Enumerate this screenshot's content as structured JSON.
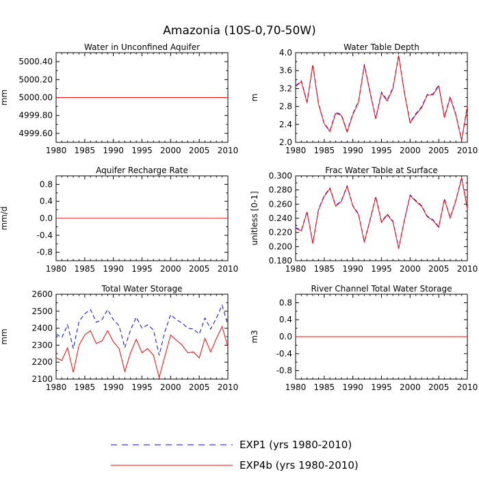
{
  "figure": {
    "title": "Amazonia (10S-0,70-50W)"
  },
  "legend": [
    {
      "label": "EXP1 (yrs 1980-2010)",
      "color": "#0000ff",
      "dash": true
    },
    {
      "label": "EXP4b (yrs 1980-2010)",
      "color": "#ff0000",
      "dash": false
    }
  ],
  "chart_data": [
    {
      "type": "line",
      "title": "Water in Unconfined Aquifer",
      "ylabel": "mm",
      "xlim": [
        1980,
        2010
      ],
      "ylim": [
        4999.5,
        5000.5
      ],
      "xticks": [
        1980,
        1985,
        1990,
        1995,
        2000,
        2005,
        2010
      ],
      "xtick_labels": [
        "1980",
        "1985",
        "1990",
        "1995",
        "2000",
        "2005",
        "2010"
      ],
      "yticks": [
        4999.6,
        4999.8,
        5000.0,
        5000.2,
        5000.4
      ],
      "ytick_labels": [
        "4999.60",
        "4999.80",
        "5000.00",
        "5000.20",
        "5000.40"
      ],
      "x": [
        1980,
        1981,
        1982,
        1983,
        1984,
        1985,
        1986,
        1987,
        1988,
        1989,
        1990,
        1991,
        1992,
        1993,
        1994,
        1995,
        1996,
        1997,
        1998,
        1999,
        2000,
        2001,
        2002,
        2003,
        2004,
        2005,
        2006,
        2007,
        2008,
        2009,
        2010
      ],
      "series": [
        {
          "name": "EXP1",
          "values": [
            5000,
            5000,
            5000,
            5000,
            5000,
            5000,
            5000,
            5000,
            5000,
            5000,
            5000,
            5000,
            5000,
            5000,
            5000,
            5000,
            5000,
            5000,
            5000,
            5000,
            5000,
            5000,
            5000,
            5000,
            5000,
            5000,
            5000,
            5000,
            5000,
            5000,
            5000
          ]
        },
        {
          "name": "EXP4b",
          "values": [
            5000,
            5000,
            5000,
            5000,
            5000,
            5000,
            5000,
            5000,
            5000,
            5000,
            5000,
            5000,
            5000,
            5000,
            5000,
            5000,
            5000,
            5000,
            5000,
            5000,
            5000,
            5000,
            5000,
            5000,
            5000,
            5000,
            5000,
            5000,
            5000,
            5000,
            5000
          ]
        }
      ]
    },
    {
      "type": "line",
      "title": "Water Table Depth",
      "ylabel": "m",
      "xlim": [
        1980,
        2010
      ],
      "ylim": [
        2.0,
        4.0
      ],
      "xticks": [
        1980,
        1985,
        1990,
        1995,
        2000,
        2005,
        2010
      ],
      "xtick_labels": [
        "1980",
        "1985",
        "1990",
        "1995",
        "2000",
        "2005",
        "2010"
      ],
      "yticks": [
        2.0,
        2.4,
        2.8,
        3.2,
        3.6,
        4.0
      ],
      "ytick_labels": [
        "2.0",
        "2.4",
        "2.8",
        "3.2",
        "3.6",
        "4.0"
      ],
      "x": [
        1980,
        1981,
        1982,
        1983,
        1984,
        1985,
        1986,
        1987,
        1988,
        1989,
        1990,
        1991,
        1992,
        1993,
        1994,
        1995,
        1996,
        1997,
        1998,
        1999,
        2000,
        2001,
        2002,
        2003,
        2004,
        2005,
        2006,
        2007,
        2008,
        2009,
        2010
      ],
      "series": [
        {
          "name": "EXP1",
          "values": [
            3.26,
            3.37,
            2.9,
            3.74,
            2.87,
            2.42,
            2.26,
            2.67,
            2.62,
            2.25,
            2.64,
            2.92,
            3.74,
            3.13,
            2.54,
            3.12,
            2.94,
            3.22,
            3.95,
            3.12,
            2.45,
            2.64,
            2.79,
            3.07,
            3.08,
            3.28,
            2.57,
            3.02,
            2.62,
            2.06,
            2.82
          ]
        },
        {
          "name": "EXP4b",
          "values": [
            3.25,
            3.35,
            2.88,
            3.72,
            2.85,
            2.41,
            2.24,
            2.65,
            2.6,
            2.23,
            2.62,
            2.9,
            3.72,
            3.11,
            2.52,
            3.1,
            2.92,
            3.2,
            3.93,
            3.1,
            2.43,
            2.62,
            2.77,
            3.05,
            3.06,
            3.26,
            2.55,
            3.0,
            2.6,
            2.04,
            2.8
          ]
        }
      ]
    },
    {
      "type": "line",
      "title": "Aquifer Recharge Rate",
      "ylabel": "mm/d",
      "xlim": [
        1980,
        2010
      ],
      "ylim": [
        -1.0,
        1.0
      ],
      "xticks": [
        1980,
        1985,
        1990,
        1995,
        2000,
        2005,
        2010
      ],
      "xtick_labels": [
        "1980",
        "1985",
        "1990",
        "1995",
        "2000",
        "2005",
        "2010"
      ],
      "yticks": [
        -0.8,
        -0.4,
        0.0,
        0.4,
        0.8
      ],
      "ytick_labels": [
        "-0.8",
        "-0.4",
        "0.0",
        "0.4",
        "0.8"
      ],
      "x": [
        1980,
        1981,
        1982,
        1983,
        1984,
        1985,
        1986,
        1987,
        1988,
        1989,
        1990,
        1991,
        1992,
        1993,
        1994,
        1995,
        1996,
        1997,
        1998,
        1999,
        2000,
        2001,
        2002,
        2003,
        2004,
        2005,
        2006,
        2007,
        2008,
        2009,
        2010
      ],
      "series": [
        {
          "name": "EXP1",
          "values": [
            0,
            0,
            0,
            0,
            0,
            0,
            0,
            0,
            0,
            0,
            0,
            0,
            0,
            0,
            0,
            0,
            0,
            0,
            0,
            0,
            0,
            0,
            0,
            0,
            0,
            0,
            0,
            0,
            0,
            0,
            0
          ]
        },
        {
          "name": "EXP4b",
          "values": [
            0,
            0,
            0,
            0,
            0,
            0,
            0,
            0,
            0,
            0,
            0,
            0,
            0,
            0,
            0,
            0,
            0,
            0,
            0,
            0,
            0,
            0,
            0,
            0,
            0,
            0,
            0,
            0,
            0,
            0,
            0
          ]
        }
      ]
    },
    {
      "type": "line",
      "title": "Frac Water Table at Surface",
      "ylabel": "unitless [0-1]",
      "xlim": [
        1980,
        2010
      ],
      "ylim": [
        0.18,
        0.3
      ],
      "xticks": [
        1980,
        1985,
        1990,
        1995,
        2000,
        2005,
        2010
      ],
      "xtick_labels": [
        "1980",
        "1985",
        "1990",
        "1995",
        "2000",
        "2005",
        "2010"
      ],
      "yticks": [
        0.18,
        0.2,
        0.22,
        0.24,
        0.26,
        0.28,
        0.3
      ],
      "ytick_labels": [
        "0.180",
        "0.200",
        "0.220",
        "0.240",
        "0.260",
        "0.280",
        "0.300"
      ],
      "x": [
        1980,
        1981,
        1982,
        1983,
        1984,
        1985,
        1986,
        1987,
        1988,
        1989,
        1990,
        1991,
        1992,
        1993,
        1994,
        1995,
        1996,
        1997,
        1998,
        1999,
        2000,
        2001,
        2002,
        2003,
        2004,
        2005,
        2006,
        2007,
        2008,
        2009,
        2010
      ],
      "series": [
        {
          "name": "EXP1",
          "values": [
            0.227,
            0.223,
            0.25,
            0.205,
            0.253,
            0.272,
            0.283,
            0.258,
            0.265,
            0.286,
            0.258,
            0.246,
            0.207,
            0.238,
            0.271,
            0.235,
            0.246,
            0.236,
            0.198,
            0.238,
            0.273,
            0.265,
            0.258,
            0.243,
            0.238,
            0.228,
            0.268,
            0.241,
            0.266,
            0.298,
            0.254
          ]
        },
        {
          "name": "EXP4b",
          "values": [
            0.226,
            0.222,
            0.249,
            0.204,
            0.252,
            0.271,
            0.282,
            0.257,
            0.264,
            0.285,
            0.257,
            0.245,
            0.206,
            0.237,
            0.27,
            0.234,
            0.245,
            0.235,
            0.197,
            0.237,
            0.272,
            0.264,
            0.257,
            0.242,
            0.237,
            0.227,
            0.267,
            0.24,
            0.265,
            0.297,
            0.253
          ]
        }
      ]
    },
    {
      "type": "line",
      "title": "Total Water Storage",
      "ylabel": "mm",
      "xlim": [
        1980,
        2010
      ],
      "ylim": [
        2100,
        2600
      ],
      "xticks": [
        1980,
        1985,
        1990,
        1995,
        2000,
        2005,
        2010
      ],
      "xtick_labels": [
        "1980",
        "1985",
        "1990",
        "1995",
        "2000",
        "2005",
        "2010"
      ],
      "yticks": [
        2100,
        2200,
        2300,
        2400,
        2500,
        2600
      ],
      "ytick_labels": [
        "2100",
        "2200",
        "2300",
        "2400",
        "2500",
        "2600"
      ],
      "x": [
        1980,
        1981,
        1982,
        1983,
        1984,
        1985,
        1986,
        1987,
        1988,
        1989,
        1990,
        1991,
        1992,
        1993,
        1994,
        1995,
        1996,
        1997,
        1998,
        1999,
        2000,
        2001,
        2002,
        2003,
        2004,
        2005,
        2006,
        2007,
        2008,
        2009,
        2010
      ],
      "series": [
        {
          "name": "EXP1",
          "values": [
            2365,
            2345,
            2420,
            2280,
            2440,
            2485,
            2510,
            2435,
            2450,
            2510,
            2450,
            2415,
            2285,
            2390,
            2465,
            2400,
            2420,
            2390,
            2240,
            2380,
            2480,
            2450,
            2430,
            2400,
            2395,
            2365,
            2460,
            2395,
            2460,
            2535,
            2420
          ]
        },
        {
          "name": "EXP4b",
          "values": [
            2225,
            2210,
            2285,
            2140,
            2300,
            2360,
            2385,
            2310,
            2325,
            2385,
            2320,
            2280,
            2145,
            2255,
            2335,
            2255,
            2280,
            2240,
            2110,
            2235,
            2360,
            2330,
            2300,
            2255,
            2260,
            2225,
            2340,
            2260,
            2340,
            2410,
            2290
          ]
        }
      ]
    },
    {
      "type": "line",
      "title": "River Channel Total Water Storage",
      "ylabel": "m3",
      "xlim": [
        1980,
        2010
      ],
      "ylim": [
        -1.0,
        1.0
      ],
      "xticks": [
        1980,
        1985,
        1990,
        1995,
        2000,
        2005,
        2010
      ],
      "xtick_labels": [
        "1980",
        "1985",
        "1990",
        "1995",
        "2000",
        "2005",
        "2010"
      ],
      "yticks": [
        -0.8,
        -0.4,
        0.0,
        0.4,
        0.8
      ],
      "ytick_labels": [
        "-0.8",
        "-0.4",
        "0.0",
        "0.4",
        "0.8"
      ],
      "x": [
        1980,
        1981,
        1982,
        1983,
        1984,
        1985,
        1986,
        1987,
        1988,
        1989,
        1990,
        1991,
        1992,
        1993,
        1994,
        1995,
        1996,
        1997,
        1998,
        1999,
        2000,
        2001,
        2002,
        2003,
        2004,
        2005,
        2006,
        2007,
        2008,
        2009,
        2010
      ],
      "series": [
        {
          "name": "EXP1",
          "values": [
            0,
            0,
            0,
            0,
            0,
            0,
            0,
            0,
            0,
            0,
            0,
            0,
            0,
            0,
            0,
            0,
            0,
            0,
            0,
            0,
            0,
            0,
            0,
            0,
            0,
            0,
            0,
            0,
            0,
            0,
            0
          ]
        },
        {
          "name": "EXP4b",
          "values": [
            0,
            0,
            0,
            0,
            0,
            0,
            0,
            0,
            0,
            0,
            0,
            0,
            0,
            0,
            0,
            0,
            0,
            0,
            0,
            0,
            0,
            0,
            0,
            0,
            0,
            0,
            0,
            0,
            0,
            0,
            0
          ]
        }
      ]
    }
  ]
}
